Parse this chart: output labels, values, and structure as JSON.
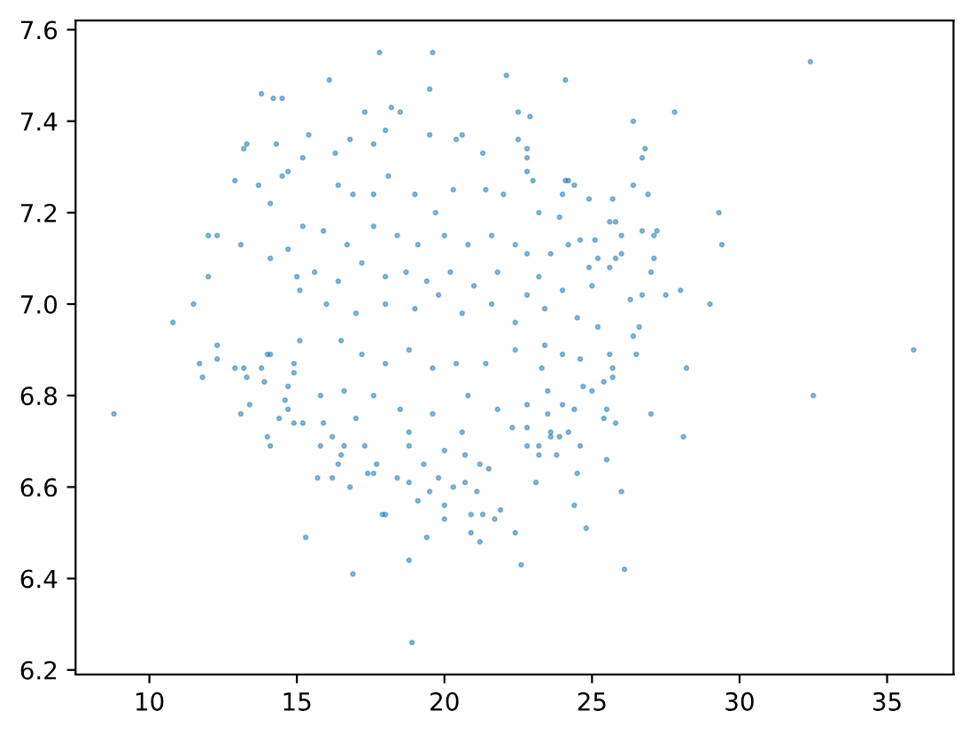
{
  "chart_data": {
    "type": "scatter",
    "color": "#1f77b4",
    "marker": "circle",
    "xlim": [
      7.5,
      37.25
    ],
    "xticks": [
      10,
      15,
      20,
      25,
      30,
      35
    ],
    "ylim": [
      6.19,
      7.62
    ],
    "yticks": [
      6.2,
      6.4,
      6.6,
      6.8,
      {
        "value": 7,
        "label": "7.0"
      },
      7.2,
      7.4,
      7.6
    ],
    "x": [
      17.8,
      19.6,
      22.1,
      16.1,
      19.5,
      13.8,
      14.2,
      14.5,
      17.3,
      18.2,
      18.5,
      22.5,
      13.3,
      13.2,
      14.3,
      15.4,
      12.9,
      13.7,
      14.1,
      12.0,
      12.3,
      13.1,
      14.1,
      12.0,
      11.5,
      10.8,
      14.7,
      14.5,
      15.2,
      15.2,
      14.7,
      15.0,
      16.8,
      16.3,
      17.6,
      18.0,
      19.5,
      20.4,
      20.6,
      21.3,
      22.5,
      32.4,
      24.1,
      22.9,
      27.8,
      26.4,
      26.8,
      26.7,
      22.8,
      22.8,
      22.8,
      23.0,
      24.1,
      24.2,
      24.4,
      24.0,
      24.9,
      25.7,
      26.4,
      26.9,
      29.3,
      29.4,
      27.2,
      27.1,
      26.7,
      25.6,
      25.8,
      26.0,
      27.1,
      27.0,
      27.5,
      28.0,
      26.7,
      26.3,
      29.0,
      26.6,
      24.6,
      25.1,
      26.0,
      25.8,
      25.6,
      25.2,
      24.9,
      25.0,
      23.9,
      23.2,
      24.5,
      25.2,
      35.9,
      32.5,
      28.2,
      28.1,
      27.0,
      26.5,
      26.4,
      25.6,
      25.7,
      25.7,
      25.4,
      25.8,
      25.4,
      25.5,
      25.5,
      26.0,
      26.1,
      24.8,
      24.4,
      24.5,
      23.1,
      24.6,
      23.8,
      23.2,
      25.0,
      24.7,
      24.4,
      23.9,
      24.2,
      23.6,
      23.6,
      22.8,
      23.2,
      22.8,
      23.5,
      24.0,
      24.6,
      23.3,
      23.5,
      8.8,
      11.7,
      11.8,
      12.3,
      12.3,
      12.9,
      13.2,
      13.3,
      13.1,
      13.4,
      14.0,
      14.1,
      13.8,
      13.9,
      14.0,
      14.1,
      14.4,
      14.6,
      14.7,
      14.7,
      14.9,
      15.2,
      14.9,
      14.9,
      15.3,
      15.7,
      15.8,
      16.2,
      16.4,
      16.8,
      16.9,
      17.4,
      17.6,
      17.9,
      18.0,
      18.4,
      18.8,
      18.8,
      18.9,
      19.1,
      19.4,
      19.5,
      19.8,
      20.0,
      20.0,
      20.3,
      20.7,
      20.9,
      20.9,
      21.2,
      21.1,
      21.3,
      21.7,
      21.9,
      22.4,
      22.6,
      21.5,
      21.2,
      20.7,
      20.0,
      19.3,
      18.8,
      17.7,
      17.3,
      16.6,
      16.5,
      16.2,
      15.9,
      16.4,
      16.9,
      17.6,
      18.1,
      19.0,
      19.7,
      20.3,
      21.4,
      22.0,
      15.9,
      16.7,
      17.6,
      18.4,
      19.1,
      20.0,
      20.8,
      21.6,
      22.4,
      15.6,
      16.4,
      17.2,
      18.0,
      18.7,
      19.4,
      20.2,
      21.0,
      21.8,
      16.0,
      17.0,
      18.0,
      19.0,
      19.8,
      20.6,
      21.6,
      22.4,
      15.1,
      15.1,
      16.5,
      17.2,
      18.0,
      18.8,
      19.6,
      20.4,
      21.4,
      22.4,
      15.8,
      16.6,
      17.6,
      18.5,
      19.6,
      20.8,
      21.8,
      17.0,
      18.8,
      20.6,
      22.3,
      22.8,
      23.2,
      22.8,
      23.4,
      24.0,
      24.2,
      23.6,
      22.8,
      23.4,
      24.0
    ],
    "values": [
      7.55,
      7.55,
      7.5,
      7.49,
      7.47,
      7.46,
      7.45,
      7.45,
      7.42,
      7.43,
      7.42,
      7.42,
      7.35,
      7.34,
      7.35,
      7.37,
      7.27,
      7.26,
      7.22,
      7.15,
      7.15,
      7.13,
      7.1,
      7.06,
      7.0,
      6.96,
      7.29,
      7.28,
      7.32,
      7.17,
      7.12,
      7.06,
      7.36,
      7.33,
      7.35,
      7.38,
      7.37,
      7.36,
      7.37,
      7.33,
      7.36,
      7.53,
      7.49,
      7.41,
      7.42,
      7.4,
      7.34,
      7.32,
      7.34,
      7.32,
      7.29,
      7.27,
      7.27,
      7.27,
      7.26,
      7.24,
      7.23,
      7.23,
      7.26,
      7.24,
      7.2,
      7.13,
      7.16,
      7.15,
      7.16,
      7.18,
      7.18,
      7.15,
      7.1,
      7.07,
      7.02,
      7.03,
      7.02,
      7.01,
      7.0,
      6.95,
      7.14,
      7.14,
      7.11,
      7.1,
      7.08,
      7.1,
      7.08,
      7.04,
      7.19,
      7.2,
      6.97,
      6.95,
      6.9,
      6.8,
      6.86,
      6.71,
      6.76,
      6.89,
      6.93,
      6.89,
      6.86,
      6.84,
      6.83,
      6.74,
      6.75,
      6.77,
      6.66,
      6.59,
      6.42,
      6.51,
      6.56,
      6.63,
      6.61,
      6.69,
      6.67,
      6.67,
      6.81,
      6.82,
      6.77,
      6.71,
      6.72,
      6.72,
      6.71,
      6.69,
      6.69,
      6.73,
      6.76,
      6.78,
      6.88,
      6.86,
      6.81,
      6.76,
      6.87,
      6.84,
      6.91,
      6.88,
      6.86,
      6.86,
      6.84,
      6.76,
      6.78,
      6.89,
      6.89,
      6.86,
      6.83,
      6.71,
      6.69,
      6.75,
      6.79,
      6.82,
      6.77,
      6.74,
      6.74,
      6.87,
      6.85,
      6.49,
      6.62,
      6.69,
      6.62,
      6.65,
      6.6,
      6.41,
      6.63,
      6.63,
      6.54,
      6.54,
      6.62,
      6.61,
      6.44,
      6.26,
      6.57,
      6.49,
      6.59,
      6.62,
      6.53,
      6.56,
      6.6,
      6.61,
      6.54,
      6.5,
      6.48,
      6.59,
      6.54,
      6.53,
      6.55,
      6.5,
      6.43,
      6.64,
      6.65,
      6.67,
      6.68,
      6.65,
      6.69,
      6.65,
      6.69,
      6.69,
      6.67,
      6.71,
      6.74,
      7.26,
      7.24,
      7.24,
      7.28,
      7.24,
      7.2,
      7.25,
      7.25,
      7.24,
      7.16,
      7.13,
      7.17,
      7.15,
      7.13,
      7.15,
      7.13,
      7.15,
      7.13,
      7.07,
      7.05,
      7.09,
      7.06,
      7.07,
      7.05,
      7.07,
      7.04,
      7.07,
      7.0,
      6.98,
      7.0,
      6.99,
      7.02,
      6.98,
      7.0,
      6.96,
      7.03,
      6.92,
      6.92,
      6.89,
      6.87,
      6.9,
      6.86,
      6.87,
      6.87,
      6.9,
      6.8,
      6.81,
      6.8,
      6.77,
      6.76,
      6.8,
      6.77,
      6.75,
      6.72,
      6.72,
      6.73,
      7.11,
      7.06,
      7.02,
      6.99,
      7.03,
      7.13,
      7.11,
      6.78,
      6.91,
      6.89
    ]
  }
}
